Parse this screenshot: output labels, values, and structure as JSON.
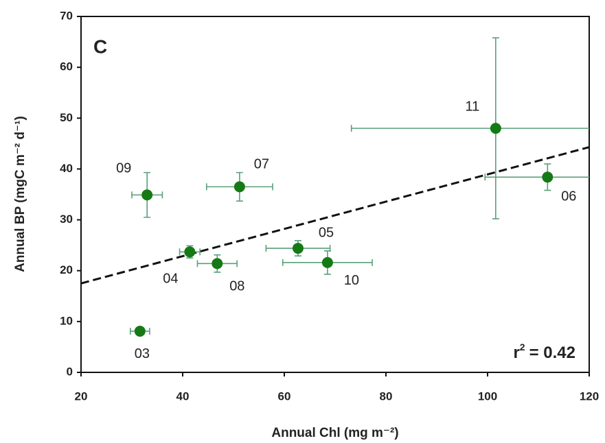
{
  "chart_data": {
    "type": "scatter",
    "panel_label": "C",
    "x_label": "Annual Chl (mg m⁻²)",
    "y_label": "Annual BP (mgC m⁻² d⁻¹)",
    "r_squared": {
      "base": "r",
      "sup": "2",
      "text": "= 0.42"
    },
    "xlim": [
      20,
      120
    ],
    "ylim": [
      0,
      70
    ],
    "xticks": [
      20,
      40,
      60,
      80,
      100,
      120
    ],
    "yticks": [
      0,
      10,
      20,
      30,
      40,
      50,
      60,
      70
    ],
    "series": [
      {
        "color": "#157a15",
        "error_color": "#5a9e7a",
        "labels": [
          "03",
          "04",
          "08",
          "09",
          "07",
          "05",
          "10",
          "11",
          "06"
        ],
        "x": [
          31.6,
          41.4,
          46.8,
          33.0,
          51.2,
          62.7,
          68.5,
          101.6,
          111.8
        ],
        "y": [
          8.1,
          23.7,
          21.4,
          34.9,
          36.5,
          24.4,
          21.6,
          48.0,
          38.4
        ],
        "xerr": [
          1.9,
          2.0,
          3.9,
          3.0,
          6.5,
          6.3,
          8.8,
          28.4,
          12.3
        ],
        "yerr": [
          0.5,
          1.2,
          1.7,
          4.4,
          2.8,
          1.5,
          2.3,
          17.8,
          2.6
        ]
      }
    ],
    "fit_line": {
      "color": "#111111",
      "x": [
        20,
        120
      ],
      "y": [
        17.5,
        44.3
      ]
    }
  }
}
